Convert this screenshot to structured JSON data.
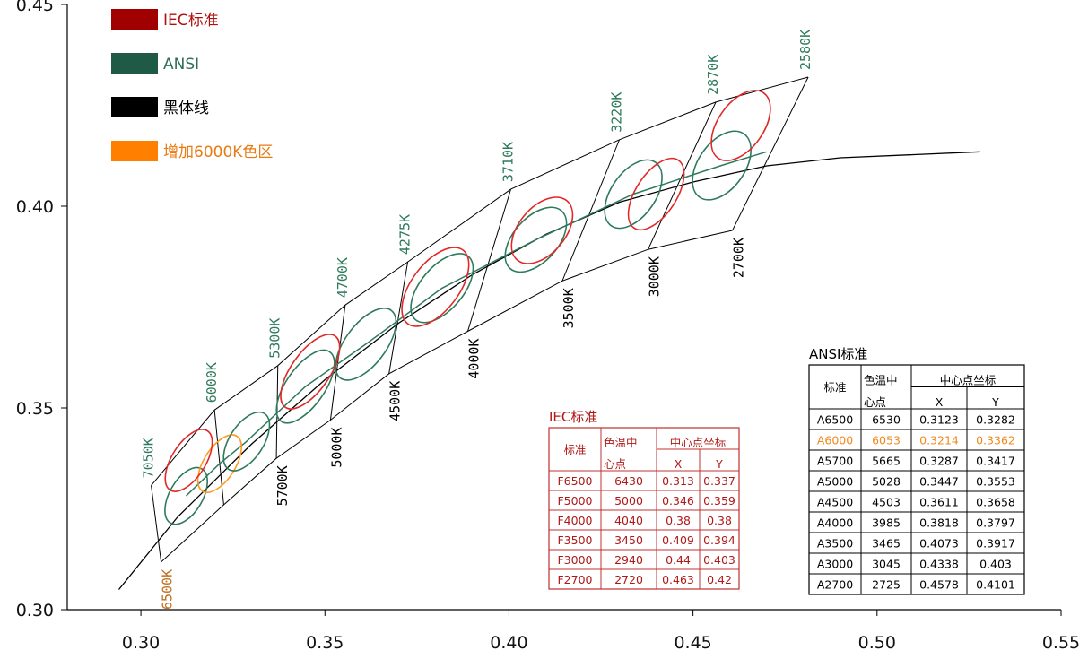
{
  "chart_data": {
    "type": "line",
    "xlim": [
      0.28,
      0.55
    ],
    "ylim": [
      0.3,
      0.45
    ],
    "x_ticks": [
      "0.30",
      "0.35",
      "0.40",
      "0.45",
      "0.50",
      "0.55"
    ],
    "y_ticks": [
      "0.30",
      "0.35",
      "0.40",
      "0.45"
    ],
    "grid": false,
    "legend": {
      "placement": "top-left",
      "items": [
        {
          "label": "IEC标准",
          "color": "#a00000",
          "text_color": "#b01010"
        },
        {
          "label": "ANSI",
          "color": "#1e5a46",
          "text_color": "#2e6e58"
        },
        {
          "label": "黑体线",
          "color": "#000000",
          "text_color": "#000000"
        },
        {
          "label": "增加6000K色区",
          "color": "#ff8000",
          "text_color": "#e87a10"
        }
      ]
    },
    "colors": {
      "iec": "#e02828",
      "ansi": "#2e7a5c",
      "blackbody": "#000000",
      "added": "#ff9a20",
      "grid_lines": "#000000"
    },
    "blackbody_locus": [
      {
        "x": 0.294,
        "y": 0.305
      },
      {
        "x": 0.31,
        "y": 0.323
      },
      {
        "x": 0.33,
        "y": 0.341
      },
      {
        "x": 0.35,
        "y": 0.357
      },
      {
        "x": 0.37,
        "y": 0.371
      },
      {
        "x": 0.39,
        "y": 0.383
      },
      {
        "x": 0.41,
        "y": 0.393
      },
      {
        "x": 0.43,
        "y": 0.401
      },
      {
        "x": 0.45,
        "y": 0.406
      },
      {
        "x": 0.47,
        "y": 0.41
      },
      {
        "x": 0.49,
        "y": 0.412
      },
      {
        "x": 0.528,
        "y": 0.4135
      }
    ],
    "ansi_center_line": [
      {
        "x": 0.3123,
        "y": 0.3282
      },
      {
        "x": 0.3214,
        "y": 0.3362
      },
      {
        "x": 0.3287,
        "y": 0.3417
      },
      {
        "x": 0.3447,
        "y": 0.3553
      },
      {
        "x": 0.3611,
        "y": 0.3658
      },
      {
        "x": 0.3818,
        "y": 0.3797
      },
      {
        "x": 0.4073,
        "y": 0.3917
      },
      {
        "x": 0.4338,
        "y": 0.403
      },
      {
        "x": 0.4578,
        "y": 0.4101
      },
      {
        "x": 0.47,
        "y": 0.4135
      }
    ],
    "isotherm_lines": [
      {
        "top": {
          "x": 0.3028,
          "y": 0.3308
        },
        "bottom": {
          "x": 0.3055,
          "y": 0.3118
        },
        "top_label": "7050K",
        "bottom_label": "6500K"
      },
      {
        "top": {
          "x": 0.32,
          "y": 0.3495
        },
        "bottom": {
          "x": 0.3225,
          "y": 0.326
        },
        "top_label": "6000K",
        "bottom_label": ""
      },
      {
        "top": {
          "x": 0.3372,
          "y": 0.3605
        },
        "bottom": {
          "x": 0.3368,
          "y": 0.3375
        },
        "top_label": "5300K",
        "bottom_label": "5700K"
      },
      {
        "top": {
          "x": 0.3555,
          "y": 0.3755
        },
        "bottom": {
          "x": 0.3515,
          "y": 0.347
        },
        "top_label": "4700K",
        "bottom_label": "5000K"
      },
      {
        "top": {
          "x": 0.3725,
          "y": 0.3862
        },
        "bottom": {
          "x": 0.3674,
          "y": 0.3585
        },
        "top_label": "4275K",
        "bottom_label": "4500K"
      },
      {
        "top": {
          "x": 0.4005,
          "y": 0.4042
        },
        "bottom": {
          "x": 0.3888,
          "y": 0.369
        },
        "top_label": "3710K",
        "bottom_label": "4000K"
      },
      {
        "top": {
          "x": 0.43,
          "y": 0.4165
        },
        "bottom": {
          "x": 0.4145,
          "y": 0.3815
        },
        "top_label": "3220K",
        "bottom_label": "3500K"
      },
      {
        "top": {
          "x": 0.4562,
          "y": 0.4258
        },
        "bottom": {
          "x": 0.4378,
          "y": 0.3893
        },
        "top_label": "2870K",
        "bottom_label": "3000K"
      },
      {
        "top": {
          "x": 0.4813,
          "y": 0.432
        },
        "bottom": {
          "x": 0.4607,
          "y": 0.394
        },
        "top_label": "2580K",
        "bottom_label": "2700K"
      }
    ],
    "ansi_quad_upper_boundary": [
      {
        "x": 0.3028,
        "y": 0.3308
      },
      {
        "x": 0.32,
        "y": 0.3495
      },
      {
        "x": 0.3372,
        "y": 0.3605
      },
      {
        "x": 0.3555,
        "y": 0.3755
      },
      {
        "x": 0.3725,
        "y": 0.3862
      },
      {
        "x": 0.4005,
        "y": 0.4042
      },
      {
        "x": 0.43,
        "y": 0.4165
      },
      {
        "x": 0.4562,
        "y": 0.4258
      },
      {
        "x": 0.4813,
        "y": 0.432
      }
    ],
    "ansi_quad_lower_boundary": [
      {
        "x": 0.3055,
        "y": 0.3118
      },
      {
        "x": 0.3225,
        "y": 0.326
      },
      {
        "x": 0.3368,
        "y": 0.3375
      },
      {
        "x": 0.3515,
        "y": 0.347
      },
      {
        "x": 0.3674,
        "y": 0.3585
      },
      {
        "x": 0.3888,
        "y": 0.369
      },
      {
        "x": 0.4145,
        "y": 0.3815
      },
      {
        "x": 0.4378,
        "y": 0.3893
      },
      {
        "x": 0.4607,
        "y": 0.394
      }
    ],
    "iec_ellipses": [
      {
        "name": "F6500",
        "x": 0.313,
        "y": 0.337,
        "rx": 0.0095,
        "ry": 0.0046,
        "angle_deg": 58
      },
      {
        "name": "F5000",
        "x": 0.346,
        "y": 0.359,
        "rx": 0.0118,
        "ry": 0.0052,
        "angle_deg": 55
      },
      {
        "name": "F4000",
        "x": 0.38,
        "y": 0.38,
        "rx": 0.0125,
        "ry": 0.0064,
        "angle_deg": 53
      },
      {
        "name": "F3500",
        "x": 0.409,
        "y": 0.394,
        "rx": 0.0105,
        "ry": 0.0063,
        "angle_deg": 50
      },
      {
        "name": "F3000",
        "x": 0.44,
        "y": 0.403,
        "rx": 0.011,
        "ry": 0.0055,
        "angle_deg": 57
      },
      {
        "name": "F2700",
        "x": 0.463,
        "y": 0.42,
        "rx": 0.0108,
        "ry": 0.0062,
        "angle_deg": 55
      }
    ],
    "ansi_ellipses": [
      {
        "name": "A6500",
        "x": 0.3123,
        "y": 0.3282,
        "rx": 0.0085,
        "ry": 0.0045,
        "angle_deg": 60
      },
      {
        "name": "A6000",
        "x": 0.3214,
        "y": 0.3362,
        "rx": 0.0088,
        "ry": 0.0043,
        "angle_deg": 58,
        "added": true
      },
      {
        "name": "A5700",
        "x": 0.3287,
        "y": 0.3417,
        "rx": 0.009,
        "ry": 0.0046,
        "angle_deg": 57
      },
      {
        "name": "A5000",
        "x": 0.3447,
        "y": 0.3553,
        "rx": 0.0115,
        "ry": 0.0052,
        "angle_deg": 55
      },
      {
        "name": "A4500",
        "x": 0.3611,
        "y": 0.3658,
        "rx": 0.0115,
        "ry": 0.0055,
        "angle_deg": 53
      },
      {
        "name": "A4000",
        "x": 0.3818,
        "y": 0.3797,
        "rx": 0.0112,
        "ry": 0.0058,
        "angle_deg": 50
      },
      {
        "name": "A3500",
        "x": 0.4073,
        "y": 0.3917,
        "rx": 0.0105,
        "ry": 0.006,
        "angle_deg": 48
      },
      {
        "name": "A3000",
        "x": 0.4338,
        "y": 0.403,
        "rx": 0.0105,
        "ry": 0.006,
        "angle_deg": 55
      },
      {
        "name": "A2700",
        "x": 0.4578,
        "y": 0.4101,
        "rx": 0.0105,
        "ry": 0.0063,
        "angle_deg": 55
      }
    ],
    "iec_table": {
      "title": "IEC标准",
      "headers": [
        "标准",
        "色温中心点",
        "中心点坐标",
        "X",
        "Y"
      ],
      "rows": [
        [
          "F6500",
          "6430",
          "0.313",
          "0.337"
        ],
        [
          "F5000",
          "5000",
          "0.346",
          "0.359"
        ],
        [
          "F4000",
          "4040",
          "0.38",
          "0.38"
        ],
        [
          "F3500",
          "3450",
          "0.409",
          "0.394"
        ],
        [
          "F3000",
          "2940",
          "0.44",
          "0.403"
        ],
        [
          "F2700",
          "2720",
          "0.463",
          "0.42"
        ]
      ]
    },
    "ansi_table": {
      "title": "ANSI标准",
      "headers": [
        "标准",
        "色温中心点",
        "中心点坐标",
        "X",
        "Y"
      ],
      "rows": [
        [
          "A6500",
          "6530",
          "0.3123",
          "0.3282"
        ],
        [
          "A6000",
          "6053",
          "0.3214",
          "0.3362"
        ],
        [
          "A5700",
          "5665",
          "0.3287",
          "0.3417"
        ],
        [
          "A5000",
          "5028",
          "0.3447",
          "0.3553"
        ],
        [
          "A4500",
          "4503",
          "0.3611",
          "0.3658"
        ],
        [
          "A4000",
          "3985",
          "0.3818",
          "0.3797"
        ],
        [
          "A3500",
          "3465",
          "0.4073",
          "0.3917"
        ],
        [
          "A3000",
          "3045",
          "0.4338",
          "0.403"
        ],
        [
          "A2700",
          "2725",
          "0.4578",
          "0.4101"
        ]
      ],
      "highlight_row": 1
    }
  }
}
